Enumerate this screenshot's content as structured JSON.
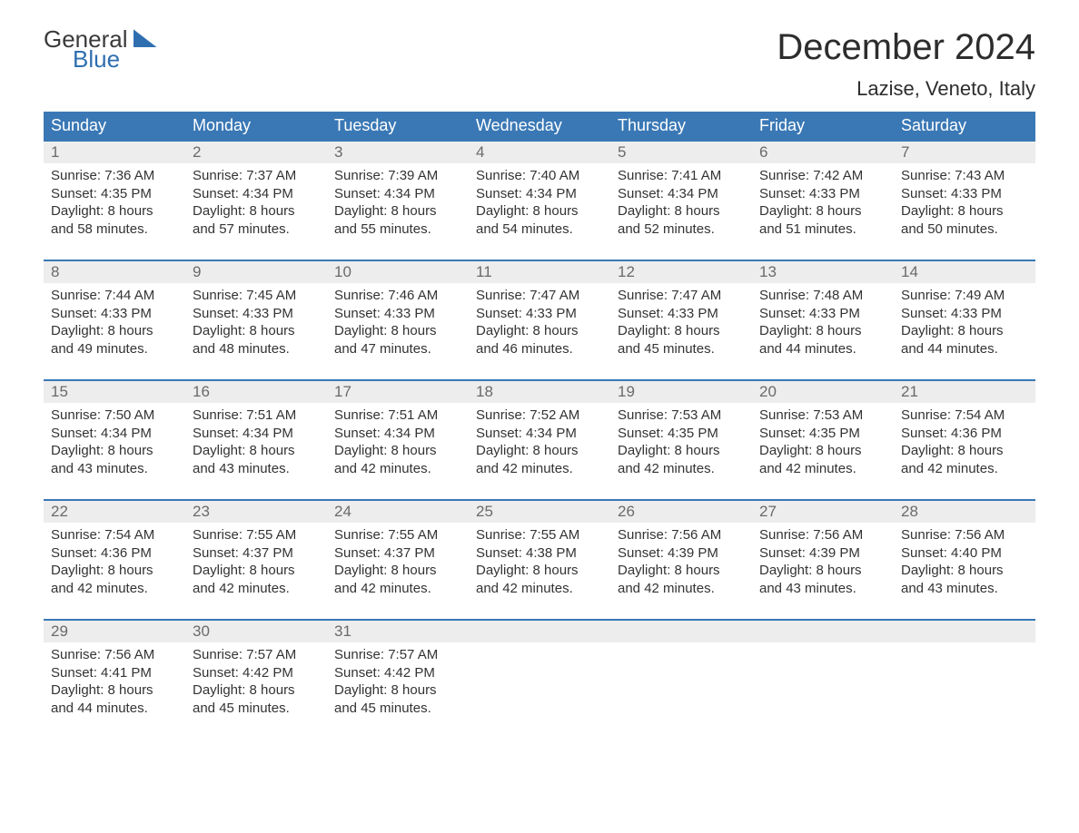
{
  "logo": {
    "word1": "General",
    "word2": "Blue"
  },
  "title": "December 2024",
  "location": "Lazise, Veneto, Italy",
  "colors": {
    "header_bg": "#3a78b5",
    "header_text": "#ffffff",
    "daynum_bg": "#ededed",
    "daynum_text": "#6a6a6a",
    "body_text": "#333333",
    "accent": "#2f6fb0",
    "page_bg": "#ffffff"
  },
  "typography": {
    "title_fontsize": 40,
    "location_fontsize": 22,
    "header_fontsize": 18,
    "daynum_fontsize": 17,
    "cell_fontsize": 15
  },
  "day_names": [
    "Sunday",
    "Monday",
    "Tuesday",
    "Wednesday",
    "Thursday",
    "Friday",
    "Saturday"
  ],
  "weeks": [
    [
      {
        "n": "1",
        "sr": "7:36 AM",
        "ss": "4:35 PM",
        "dl": "8 hours and 58 minutes."
      },
      {
        "n": "2",
        "sr": "7:37 AM",
        "ss": "4:34 PM",
        "dl": "8 hours and 57 minutes."
      },
      {
        "n": "3",
        "sr": "7:39 AM",
        "ss": "4:34 PM",
        "dl": "8 hours and 55 minutes."
      },
      {
        "n": "4",
        "sr": "7:40 AM",
        "ss": "4:34 PM",
        "dl": "8 hours and 54 minutes."
      },
      {
        "n": "5",
        "sr": "7:41 AM",
        "ss": "4:34 PM",
        "dl": "8 hours and 52 minutes."
      },
      {
        "n": "6",
        "sr": "7:42 AM",
        "ss": "4:33 PM",
        "dl": "8 hours and 51 minutes."
      },
      {
        "n": "7",
        "sr": "7:43 AM",
        "ss": "4:33 PM",
        "dl": "8 hours and 50 minutes."
      }
    ],
    [
      {
        "n": "8",
        "sr": "7:44 AM",
        "ss": "4:33 PM",
        "dl": "8 hours and 49 minutes."
      },
      {
        "n": "9",
        "sr": "7:45 AM",
        "ss": "4:33 PM",
        "dl": "8 hours and 48 minutes."
      },
      {
        "n": "10",
        "sr": "7:46 AM",
        "ss": "4:33 PM",
        "dl": "8 hours and 47 minutes."
      },
      {
        "n": "11",
        "sr": "7:47 AM",
        "ss": "4:33 PM",
        "dl": "8 hours and 46 minutes."
      },
      {
        "n": "12",
        "sr": "7:47 AM",
        "ss": "4:33 PM",
        "dl": "8 hours and 45 minutes."
      },
      {
        "n": "13",
        "sr": "7:48 AM",
        "ss": "4:33 PM",
        "dl": "8 hours and 44 minutes."
      },
      {
        "n": "14",
        "sr": "7:49 AM",
        "ss": "4:33 PM",
        "dl": "8 hours and 44 minutes."
      }
    ],
    [
      {
        "n": "15",
        "sr": "7:50 AM",
        "ss": "4:34 PM",
        "dl": "8 hours and 43 minutes."
      },
      {
        "n": "16",
        "sr": "7:51 AM",
        "ss": "4:34 PM",
        "dl": "8 hours and 43 minutes."
      },
      {
        "n": "17",
        "sr": "7:51 AM",
        "ss": "4:34 PM",
        "dl": "8 hours and 42 minutes."
      },
      {
        "n": "18",
        "sr": "7:52 AM",
        "ss": "4:34 PM",
        "dl": "8 hours and 42 minutes."
      },
      {
        "n": "19",
        "sr": "7:53 AM",
        "ss": "4:35 PM",
        "dl": "8 hours and 42 minutes."
      },
      {
        "n": "20",
        "sr": "7:53 AM",
        "ss": "4:35 PM",
        "dl": "8 hours and 42 minutes."
      },
      {
        "n": "21",
        "sr": "7:54 AM",
        "ss": "4:36 PM",
        "dl": "8 hours and 42 minutes."
      }
    ],
    [
      {
        "n": "22",
        "sr": "7:54 AM",
        "ss": "4:36 PM",
        "dl": "8 hours and 42 minutes."
      },
      {
        "n": "23",
        "sr": "7:55 AM",
        "ss": "4:37 PM",
        "dl": "8 hours and 42 minutes."
      },
      {
        "n": "24",
        "sr": "7:55 AM",
        "ss": "4:37 PM",
        "dl": "8 hours and 42 minutes."
      },
      {
        "n": "25",
        "sr": "7:55 AM",
        "ss": "4:38 PM",
        "dl": "8 hours and 42 minutes."
      },
      {
        "n": "26",
        "sr": "7:56 AM",
        "ss": "4:39 PM",
        "dl": "8 hours and 42 minutes."
      },
      {
        "n": "27",
        "sr": "7:56 AM",
        "ss": "4:39 PM",
        "dl": "8 hours and 43 minutes."
      },
      {
        "n": "28",
        "sr": "7:56 AM",
        "ss": "4:40 PM",
        "dl": "8 hours and 43 minutes."
      }
    ],
    [
      {
        "n": "29",
        "sr": "7:56 AM",
        "ss": "4:41 PM",
        "dl": "8 hours and 44 minutes."
      },
      {
        "n": "30",
        "sr": "7:57 AM",
        "ss": "4:42 PM",
        "dl": "8 hours and 45 minutes."
      },
      {
        "n": "31",
        "sr": "7:57 AM",
        "ss": "4:42 PM",
        "dl": "8 hours and 45 minutes."
      },
      null,
      null,
      null,
      null
    ]
  ],
  "labels": {
    "sunrise": "Sunrise:",
    "sunset": "Sunset:",
    "daylight": "Daylight:"
  }
}
